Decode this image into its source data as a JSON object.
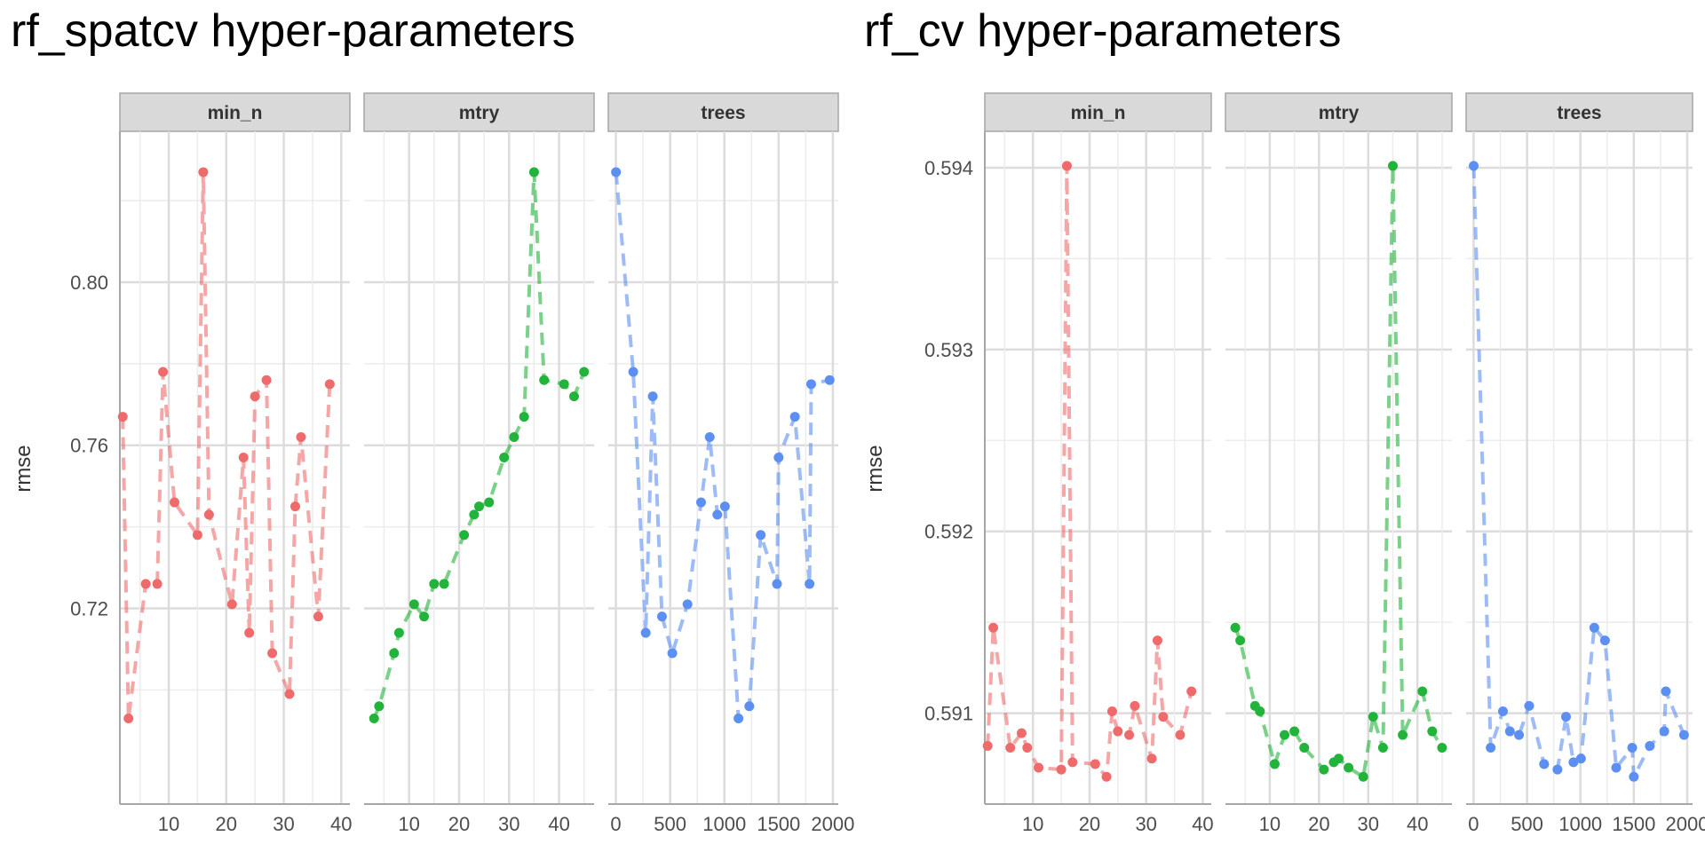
{
  "chart_data": [
    {
      "type": "line",
      "title": "rf_spatcv hyper-parameters",
      "ylabel": "rmse",
      "y_ticks": [
        0.72,
        0.76,
        0.8
      ],
      "y_tick_labels": [
        "0.72",
        "0.76",
        "0.80"
      ],
      "ylim": [
        0.672,
        0.837
      ],
      "grid": true,
      "line_style": "dashed",
      "facets": [
        {
          "name": "min_n",
          "color": "#ef6a6a",
          "xlim": [
            1.5,
            41.5
          ],
          "x_ticks": [
            10,
            20,
            30,
            40
          ],
          "x_tick_labels": [
            "10",
            "20",
            "30",
            "40"
          ],
          "x": [
            2,
            3,
            6,
            8,
            9,
            11,
            15,
            16,
            17,
            21,
            23,
            24,
            25,
            27,
            28,
            31,
            32,
            33,
            36,
            38
          ],
          "y": [
            0.767,
            0.693,
            0.726,
            0.726,
            0.778,
            0.746,
            0.738,
            0.827,
            0.743,
            0.721,
            0.757,
            0.714,
            0.772,
            0.776,
            0.709,
            0.699,
            0.745,
            0.762,
            0.718,
            0.775
          ]
        },
        {
          "name": "mtry",
          "color": "#22b33a",
          "xlim": [
            1,
            47
          ],
          "x_ticks": [
            10,
            20,
            30,
            40
          ],
          "x_tick_labels": [
            "10",
            "20",
            "30",
            "40"
          ],
          "x": [
            3,
            4,
            7,
            8,
            11,
            13,
            15,
            17,
            21,
            23,
            24,
            26,
            29,
            31,
            33,
            35,
            37,
            41,
            43,
            45
          ],
          "y": [
            0.693,
            0.696,
            0.709,
            0.714,
            0.721,
            0.718,
            0.726,
            0.726,
            0.738,
            0.743,
            0.745,
            0.746,
            0.757,
            0.762,
            0.767,
            0.827,
            0.776,
            0.775,
            0.772,
            0.778
          ]
        },
        {
          "name": "trees",
          "color": "#5b8ff2",
          "xlim": [
            -70,
            2050
          ],
          "x_ticks": [
            0,
            500,
            1000,
            1500,
            2000
          ],
          "x_tick_labels": [
            "0",
            "500",
            "1000",
            "1500",
            "2000"
          ],
          "x": [
            1,
            160,
            275,
            340,
            425,
            520,
            660,
            785,
            865,
            935,
            1005,
            1130,
            1230,
            1335,
            1485,
            1500,
            1650,
            1785,
            1800,
            1970
          ],
          "y": [
            0.827,
            0.778,
            0.714,
            0.772,
            0.718,
            0.709,
            0.721,
            0.746,
            0.762,
            0.743,
            0.745,
            0.693,
            0.696,
            0.738,
            0.726,
            0.757,
            0.767,
            0.726,
            0.775,
            0.776
          ]
        }
      ]
    },
    {
      "type": "line",
      "title": "rf_cv hyper-parameters",
      "ylabel": "rmse",
      "y_ticks": [
        0.591,
        0.592,
        0.593,
        0.594
      ],
      "y_tick_labels": [
        "0.591",
        "0.592",
        "0.593",
        "0.594"
      ],
      "ylim": [
        0.5905,
        0.5942
      ],
      "grid": true,
      "line_style": "dashed",
      "facets": [
        {
          "name": "min_n",
          "color": "#ef6a6a",
          "xlim": [
            1.5,
            41.5
          ],
          "x_ticks": [
            10,
            20,
            30,
            40
          ],
          "x_tick_labels": [
            "10",
            "20",
            "30",
            "40"
          ],
          "x": [
            2,
            3,
            6,
            8,
            9,
            11,
            15,
            16,
            17,
            21,
            23,
            24,
            25,
            27,
            28,
            31,
            32,
            33,
            36,
            38
          ],
          "y": [
            0.59082,
            0.59147,
            0.59081,
            0.59089,
            0.59081,
            0.5907,
            0.59069,
            0.59401,
            0.59073,
            0.59072,
            0.59065,
            0.59101,
            0.5909,
            0.59088,
            0.59104,
            0.59075,
            0.5914,
            0.59098,
            0.59088,
            0.59112
          ]
        },
        {
          "name": "mtry",
          "color": "#22b33a",
          "xlim": [
            1,
            47
          ],
          "x_ticks": [
            10,
            20,
            30,
            40
          ],
          "x_tick_labels": [
            "10",
            "20",
            "30",
            "40"
          ],
          "x": [
            3,
            4,
            7,
            8,
            11,
            13,
            15,
            17,
            21,
            23,
            24,
            26,
            29,
            31,
            33,
            35,
            37,
            41,
            43,
            45
          ],
          "y": [
            0.59147,
            0.5914,
            0.59104,
            0.59101,
            0.59072,
            0.59088,
            0.5909,
            0.59081,
            0.59069,
            0.59073,
            0.59075,
            0.5907,
            0.59065,
            0.59098,
            0.59081,
            0.59401,
            0.59088,
            0.59112,
            0.5909,
            0.59081
          ]
        },
        {
          "name": "trees",
          "color": "#5b8ff2",
          "xlim": [
            -70,
            2050
          ],
          "x_ticks": [
            0,
            500,
            1000,
            1500,
            2000
          ],
          "x_tick_labels": [
            "0",
            "500",
            "1000",
            "1500",
            "2000"
          ],
          "x": [
            1,
            160,
            275,
            340,
            425,
            520,
            660,
            785,
            865,
            935,
            1005,
            1130,
            1230,
            1335,
            1485,
            1500,
            1650,
            1785,
            1800,
            1970
          ],
          "y": [
            0.59401,
            0.59081,
            0.59101,
            0.5909,
            0.59088,
            0.59104,
            0.59072,
            0.59069,
            0.59098,
            0.59073,
            0.59075,
            0.59147,
            0.5914,
            0.5907,
            0.59081,
            0.59065,
            0.59082,
            0.5909,
            0.59112,
            0.59088
          ]
        }
      ]
    }
  ]
}
